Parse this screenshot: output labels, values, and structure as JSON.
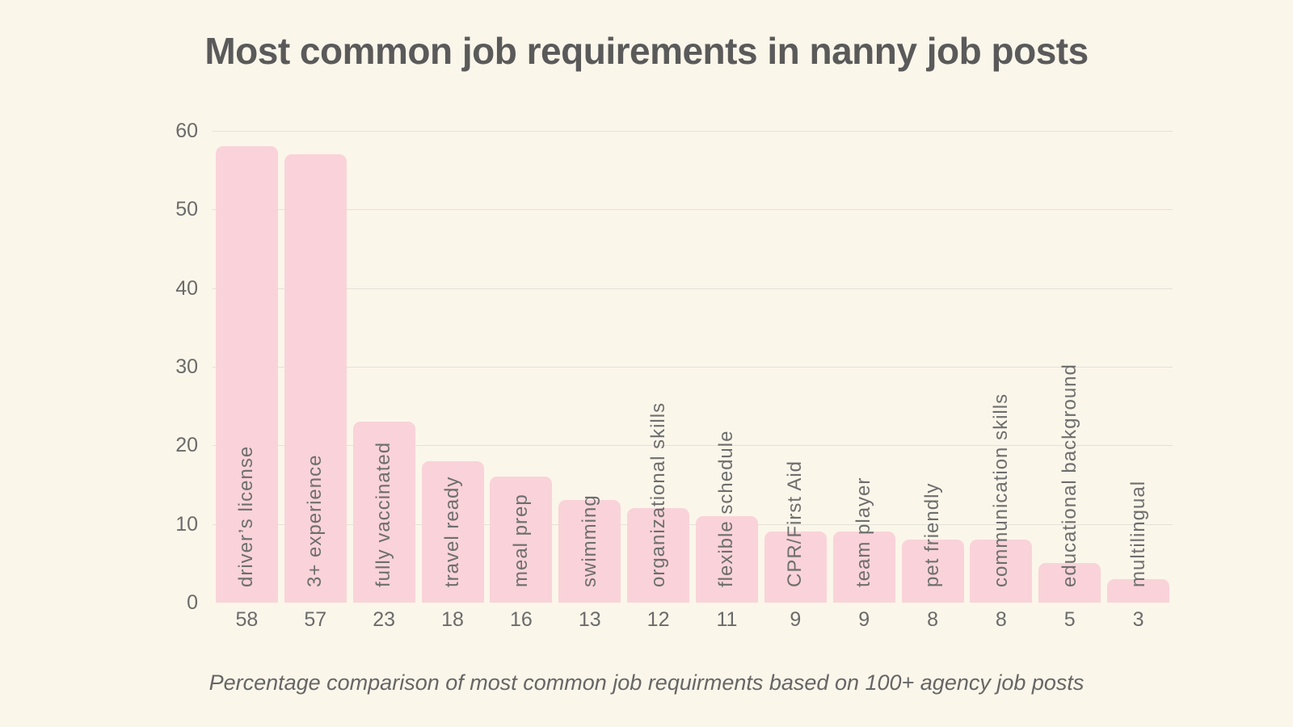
{
  "title": "Most common job requirements in nanny job posts",
  "subtitle": "Percentage comparison of most common job requirments based on 100+ agency job posts",
  "chart_data": {
    "type": "bar",
    "title": "Most common job requirements in nanny job posts",
    "caption": "Percentage comparison of most common job requirments based on 100+ agency job posts",
    "categories": [
      "driver’s license",
      "3+ experience",
      "fully vaccinated",
      "travel ready",
      "meal prep",
      "swimming",
      "organizational skills",
      "flexible schedule",
      "CPR/First Aid",
      "team player",
      "pet friendly",
      "communication skills",
      "educational background",
      "multilingual"
    ],
    "values": [
      58,
      57,
      23,
      18,
      16,
      13,
      12,
      11,
      9,
      9,
      8,
      8,
      5,
      3
    ],
    "xlabel": "",
    "ylabel": "",
    "ylim": [
      0,
      60
    ],
    "yticks": [
      0,
      10,
      20,
      30,
      40,
      50,
      60
    ],
    "grid": true,
    "legend": "none",
    "colors": {
      "background": "#fbf6ea",
      "bar": "#f9d3d9",
      "gridline": "#e4e1d8",
      "title_text": "#5a5a5a",
      "label_text": "#6e6e6e",
      "tick_text": "#6b6b6b"
    }
  }
}
